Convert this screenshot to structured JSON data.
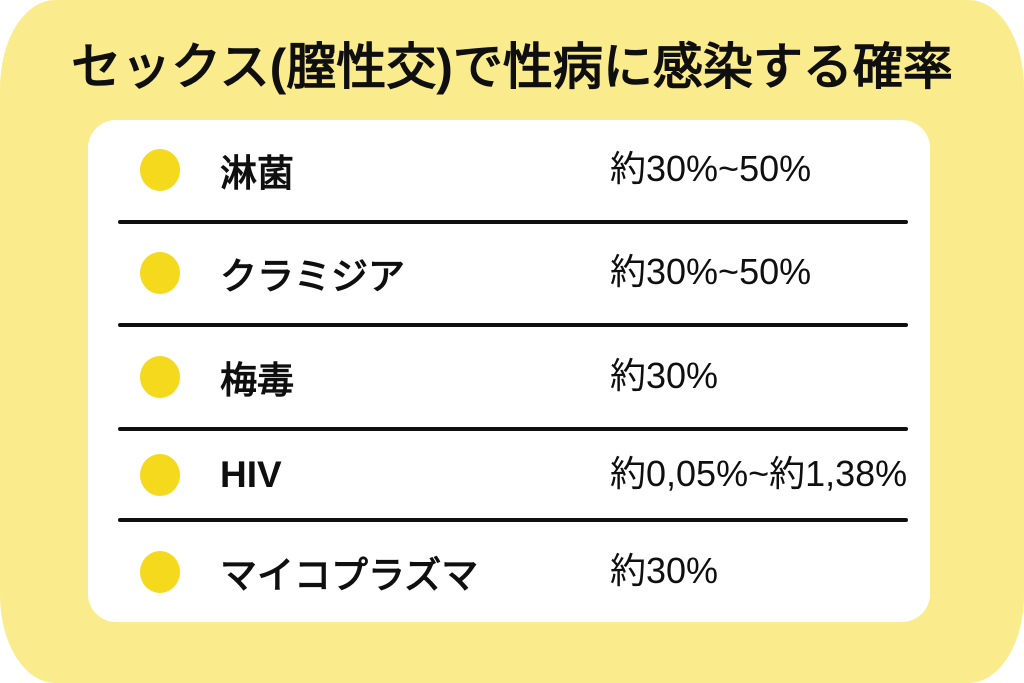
{
  "colors": {
    "bg_yellow": "#FAEC8C",
    "bullet_yellow": "#F5D91D",
    "card_white": "#FFFFFF",
    "text_black": "#0F0F0F"
  },
  "title": "セックス(膣性交)で性病に感染する確率",
  "table": {
    "rows": [
      {
        "name": "淋菌",
        "value": "約30%~50%"
      },
      {
        "name": "クラミジア",
        "value": "約30%~50%"
      },
      {
        "name": "梅毒",
        "value": "約30%"
      },
      {
        "name": "HIV",
        "value": "約0,05%~約1,38%"
      },
      {
        "name": "マイコプラズマ",
        "value": "約30%"
      }
    ]
  },
  "chart_data": {
    "type": "table",
    "title": "セックス(膣性交)で性病に感染する確率",
    "categories": [
      "淋菌",
      "クラミジア",
      "梅毒",
      "HIV",
      "マイコプラズマ"
    ],
    "values": [
      "約30%~50%",
      "約30%~50%",
      "約30%",
      "約0,05%~約1,38%",
      "約30%"
    ],
    "legend_position": "none",
    "grid": false
  }
}
